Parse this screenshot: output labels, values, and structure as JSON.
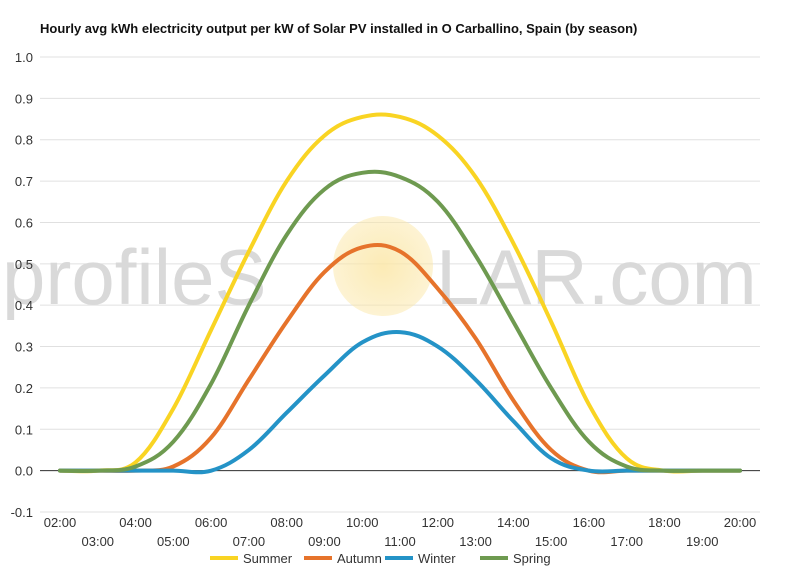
{
  "chart_data": {
    "type": "line",
    "title": "Hourly avg kWh electricity output per kW of Solar PV installed in O Carballino, Spain (by season)",
    "xlabel": "",
    "ylabel": "",
    "x_ticks": [
      "02:00",
      "03:00",
      "04:00",
      "05:00",
      "06:00",
      "07:00",
      "08:00",
      "09:00",
      "10:00",
      "11:00",
      "12:00",
      "13:00",
      "14:00",
      "15:00",
      "16:00",
      "17:00",
      "18:00",
      "19:00",
      "20:00"
    ],
    "y_ticks": [
      "-0.1",
      "0.0",
      "0.1",
      "0.2",
      "0.3",
      "0.4",
      "0.5",
      "0.6",
      "0.7",
      "0.8",
      "0.9",
      "1.0"
    ],
    "ylim": [
      -0.1,
      1.0
    ],
    "xlim": [
      2,
      20
    ],
    "grid": "horizontal",
    "legend_position": "bottom",
    "series": [
      {
        "name": "Summer",
        "color": "#f9d423",
        "x": [
          2,
          3,
          4,
          5,
          6,
          7,
          8,
          9,
          10,
          11,
          12,
          13,
          14,
          15,
          16,
          17,
          18,
          19,
          20
        ],
        "y": [
          0.0,
          0.0,
          0.02,
          0.15,
          0.34,
          0.53,
          0.7,
          0.81,
          0.855,
          0.855,
          0.81,
          0.71,
          0.55,
          0.36,
          0.16,
          0.03,
          0.0,
          0.0,
          0.0
        ]
      },
      {
        "name": "Autumn",
        "color": "#e6732b",
        "x": [
          2,
          3,
          4,
          5,
          6,
          7,
          8,
          9,
          10,
          11,
          12,
          13,
          14,
          15,
          16,
          17,
          18,
          19,
          20
        ],
        "y": [
          0.0,
          0.0,
          0.0,
          0.01,
          0.08,
          0.22,
          0.36,
          0.48,
          0.54,
          0.53,
          0.44,
          0.32,
          0.17,
          0.05,
          0.0,
          0.0,
          0.0,
          0.0,
          0.0
        ]
      },
      {
        "name": "Winter",
        "color": "#2493c7",
        "x": [
          2,
          3,
          4,
          5,
          6,
          7,
          8,
          9,
          10,
          11,
          12,
          13,
          14,
          15,
          16,
          17,
          18,
          19,
          20
        ],
        "y": [
          0.0,
          0.0,
          0.0,
          0.0,
          0.0,
          0.05,
          0.14,
          0.23,
          0.31,
          0.335,
          0.3,
          0.22,
          0.12,
          0.03,
          0.0,
          0.0,
          0.0,
          0.0,
          0.0
        ]
      },
      {
        "name": "Spring",
        "color": "#6e9a50",
        "x": [
          2,
          3,
          4,
          5,
          6,
          7,
          8,
          9,
          10,
          11,
          12,
          13,
          14,
          15,
          16,
          17,
          18,
          19,
          20
        ],
        "y": [
          0.0,
          0.0,
          0.01,
          0.07,
          0.21,
          0.4,
          0.57,
          0.68,
          0.72,
          0.71,
          0.65,
          0.52,
          0.36,
          0.2,
          0.07,
          0.01,
          0.0,
          0.0,
          0.0
        ]
      }
    ]
  },
  "watermark": {
    "left": "profileS",
    "right": "LAR.com"
  }
}
